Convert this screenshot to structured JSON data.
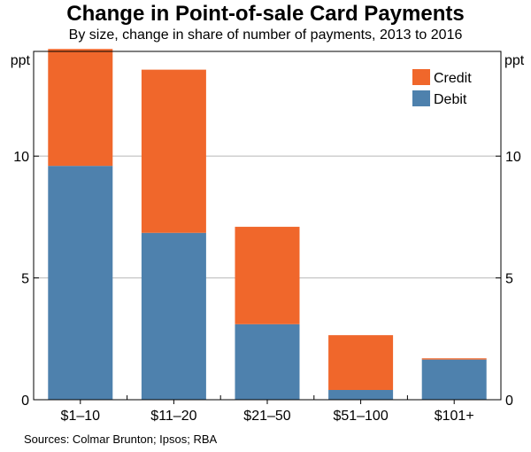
{
  "title": "Change in Point-of-sale Card Payments",
  "subtitle": "By size, change in share of number of payments, 2013 to 2016",
  "source": "Sources: Colmar Brunton; Ipsos; RBA",
  "chart_data": {
    "type": "bar",
    "stacked": true,
    "categories": [
      "$1–10",
      "$11–20",
      "$21–50",
      "$51–100",
      "$101+"
    ],
    "series": [
      {
        "name": "Debit",
        "values": [
          9.6,
          6.85,
          3.1,
          0.4,
          1.65
        ],
        "color": "#4e81ad"
      },
      {
        "name": "Credit",
        "values": [
          4.8,
          6.7,
          4.0,
          2.25,
          0.05
        ],
        "color": "#f0672b"
      }
    ],
    "ylabel": "ppt",
    "ylabel_right": "ppt",
    "ylim": [
      0,
      14.3
    ],
    "yticks": [
      0,
      5,
      10
    ],
    "grid": true,
    "legend": "top-right",
    "legend_order": [
      "Credit",
      "Debit"
    ]
  }
}
